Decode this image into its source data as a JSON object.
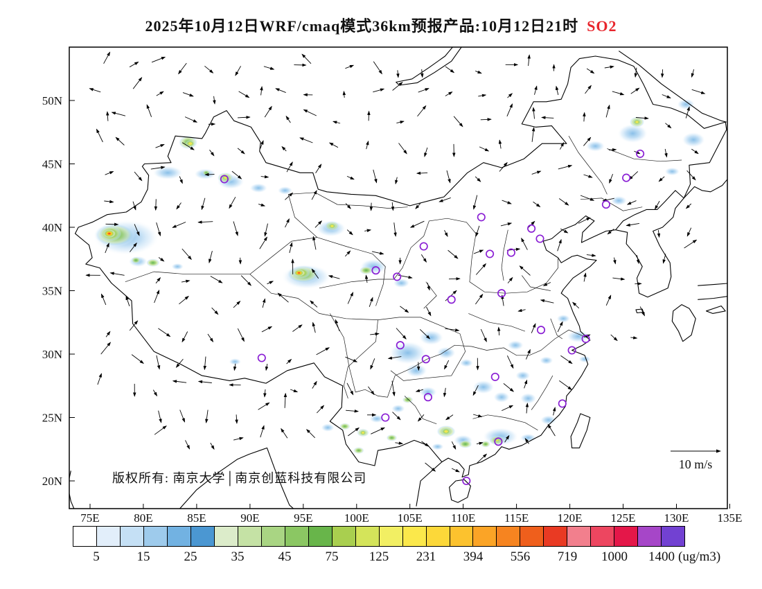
{
  "title": {
    "text": "2025年10月12日WRF/cmaq模式36km预报产品:10月12日21时",
    "species": "SO2",
    "species_color": "#e8252c"
  },
  "map": {
    "copyright": "版权所有: 南京大学│南京创蓝科技有限公司",
    "wind_ref_label": "10 m/s",
    "lat_labels": [
      "50N",
      "45N",
      "40N",
      "35N",
      "30N",
      "25N",
      "20N"
    ],
    "lat_values": [
      50,
      45,
      40,
      35,
      30,
      25,
      20
    ],
    "lon_labels": [
      "75E",
      "80E",
      "85E",
      "90E",
      "95E",
      "100E",
      "105E",
      "110E",
      "115E",
      "120E",
      "125E",
      "130E",
      "135E"
    ],
    "lon_values": [
      75,
      80,
      85,
      90,
      95,
      100,
      105,
      110,
      115,
      120,
      125,
      130,
      135
    ]
  },
  "colorbar": {
    "values": [
      "5",
      "15",
      "25",
      "35",
      "45",
      "75",
      "125",
      "231",
      "394",
      "556",
      "719",
      "1000",
      "1400"
    ],
    "unit": "(ug/m3)",
    "colors": [
      "#ffffff",
      "#e2eefa",
      "#c5e0f5",
      "#9ecbec",
      "#72b2e2",
      "#4b97d2",
      "#dcecca",
      "#c5e2a5",
      "#a9d583",
      "#8bc763",
      "#68b54a",
      "#a9cf4f",
      "#d4e45a",
      "#f2ef63",
      "#fbe84b",
      "#fcd839",
      "#fcc22e",
      "#fba426",
      "#f68420",
      "#ef5f1c",
      "#e93a23",
      "#f27f8d",
      "#ed4660",
      "#e41749",
      "#a646c8",
      "#7241d2"
    ]
  },
  "chart_data": {
    "type": "heatmap",
    "title": "2025年10月12日WRF/cmaq模式36km预报产品:10月12日21时 SO2",
    "variable": "SO2",
    "unit": "ug/m3",
    "model": "WRF/cmaq 36km",
    "valid_time_label": "10月12日21时",
    "lon_range": [
      73,
      135
    ],
    "lat_range": [
      17.8,
      54.2
    ],
    "levels": [
      5,
      15,
      25,
      35,
      45,
      75,
      125,
      231,
      394,
      556,
      719,
      1000,
      1400
    ],
    "wind_reference_ms": 10,
    "wind_grid": {
      "dlon": 2.5,
      "dlat": 2.1
    },
    "hotspots": {
      "blue": [
        [
          78.4,
          39.2,
          48,
          26
        ],
        [
          82.3,
          44.3,
          22,
          10
        ],
        [
          85.8,
          44.2,
          16,
          8
        ],
        [
          88.2,
          43.6,
          20,
          11
        ],
        [
          90.8,
          43.1,
          13,
          7
        ],
        [
          93.3,
          42.9,
          11,
          6
        ],
        [
          79.5,
          37.3,
          14,
          8
        ],
        [
          83.2,
          36.9,
          9,
          5
        ],
        [
          95.3,
          36.1,
          36,
          18
        ],
        [
          97.6,
          39.9,
          22,
          12
        ],
        [
          101.6,
          36.9,
          20,
          11
        ],
        [
          104.2,
          35.6,
          12,
          7
        ],
        [
          88.6,
          29.4,
          9,
          5
        ],
        [
          104.8,
          30.1,
          28,
          17
        ],
        [
          107.0,
          31.3,
          18,
          11
        ],
        [
          105.6,
          28.7,
          16,
          10
        ],
        [
          108.4,
          30.1,
          14,
          9
        ],
        [
          110.3,
          29.3,
          10,
          6
        ],
        [
          101.9,
          24.9,
          11,
          6
        ],
        [
          103.9,
          25.7,
          10,
          6
        ],
        [
          106.7,
          27.0,
          13,
          8
        ],
        [
          107.6,
          22.7,
          9,
          5
        ],
        [
          113.5,
          23.5,
          26,
          13
        ],
        [
          116.1,
          23.4,
          12,
          6
        ],
        [
          111.9,
          27.4,
          16,
          10
        ],
        [
          113.6,
          26.6,
          12,
          8
        ],
        [
          115.6,
          28.3,
          11,
          7
        ],
        [
          116.1,
          26.5,
          12,
          8
        ],
        [
          118.0,
          24.8,
          12,
          7
        ],
        [
          114.9,
          30.7,
          12,
          7
        ],
        [
          117.8,
          29.5,
          10,
          6
        ],
        [
          120.8,
          31.4,
          17,
          9
        ],
        [
          119.4,
          32.8,
          10,
          6
        ],
        [
          121.4,
          29.6,
          9,
          5
        ],
        [
          125.9,
          47.4,
          22,
          14
        ],
        [
          122.4,
          46.4,
          14,
          8
        ],
        [
          129.6,
          44.4,
          11,
          6
        ],
        [
          131.6,
          46.9,
          17,
          11
        ],
        [
          130.9,
          49.7,
          13,
          8
        ],
        [
          124.6,
          42.1,
          12,
          7
        ],
        [
          110.0,
          23.2,
          14,
          8
        ],
        [
          97.3,
          24.2,
          10,
          6
        ]
      ],
      "green": [
        [
          77.3,
          39.4,
          30,
          17
        ],
        [
          80.9,
          37.2,
          10,
          6
        ],
        [
          79.3,
          37.4,
          7,
          5
        ],
        [
          84.2,
          46.7,
          14,
          10
        ],
        [
          85.9,
          44.3,
          6,
          4
        ],
        [
          87.7,
          43.9,
          12,
          8
        ],
        [
          95.0,
          36.3,
          24,
          13
        ],
        [
          97.7,
          40.1,
          11,
          7
        ],
        [
          100.9,
          36.6,
          10,
          6
        ],
        [
          98.9,
          24.3,
          8,
          5
        ],
        [
          100.6,
          23.8,
          9,
          6
        ],
        [
          100.2,
          22.4,
          8,
          5
        ],
        [
          103.3,
          23.4,
          8,
          5
        ],
        [
          104.8,
          26.4,
          8,
          5
        ],
        [
          108.4,
          23.9,
          14,
          9
        ],
        [
          110.2,
          22.9,
          10,
          6
        ],
        [
          113.2,
          23.2,
          12,
          7
        ],
        [
          112.1,
          22.9,
          7,
          5
        ],
        [
          126.3,
          48.3,
          11,
          8
        ]
      ],
      "yellow": [
        [
          76.9,
          39.5,
          16,
          11
        ],
        [
          84.4,
          46.6,
          7,
          5
        ],
        [
          87.7,
          43.9,
          6,
          4
        ],
        [
          94.8,
          36.4,
          13,
          8
        ],
        [
          97.7,
          40.1,
          6,
          4
        ],
        [
          100.6,
          23.8,
          5,
          4
        ],
        [
          108.4,
          23.9,
          7,
          5
        ],
        [
          126.3,
          48.3,
          6,
          4
        ],
        [
          113.2,
          23.2,
          5,
          3
        ]
      ],
      "red": [
        [
          76.8,
          39.5,
          9,
          6
        ],
        [
          94.6,
          36.4,
          8,
          5
        ]
      ]
    },
    "stations": [
      [
        87.6,
        43.8
      ],
      [
        91.1,
        29.7
      ],
      [
        101.8,
        36.6
      ],
      [
        103.8,
        36.1
      ],
      [
        106.3,
        38.5
      ],
      [
        111.7,
        40.8
      ],
      [
        112.5,
        37.9
      ],
      [
        114.5,
        38.0
      ],
      [
        116.4,
        39.9
      ],
      [
        117.2,
        39.1
      ],
      [
        123.4,
        41.8
      ],
      [
        125.3,
        43.9
      ],
      [
        126.6,
        45.8
      ],
      [
        113.6,
        34.8
      ],
      [
        108.9,
        34.3
      ],
      [
        104.1,
        30.7
      ],
      [
        106.5,
        29.6
      ],
      [
        117.3,
        31.9
      ],
      [
        121.5,
        31.2
      ],
      [
        120.2,
        30.3
      ],
      [
        113.0,
        28.2
      ],
      [
        106.7,
        26.6
      ],
      [
        102.7,
        25.0
      ],
      [
        119.3,
        26.1
      ],
      [
        113.3,
        23.1
      ],
      [
        110.3,
        20.0
      ]
    ]
  }
}
